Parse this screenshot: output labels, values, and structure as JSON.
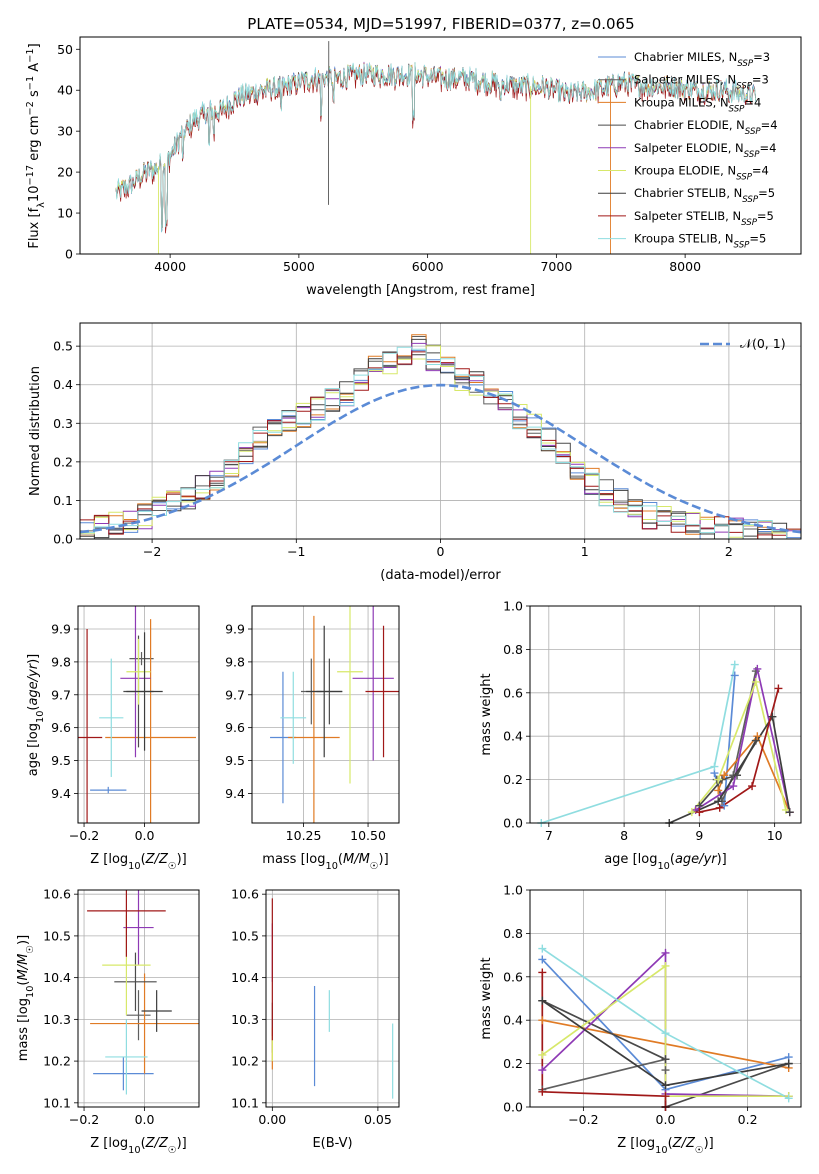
{
  "title": "PLATE=0534, MJD=51997, FIBERID=0377, z=0.065",
  "colors": {
    "chabrier_miles": "#5b8bd6",
    "salpeter_miles": "#5f5f5f",
    "kroupa_miles": "#e07b25",
    "chabrier_elodie": "#4a4a4a",
    "salpeter_elodie": "#8e3ab5",
    "kroupa_elodie": "#d7e86a",
    "chabrier_stelib": "#3d3d3d",
    "salpeter_stelib": "#a01818",
    "kroupa_stelib": "#8fdde0",
    "normal": "#5b8bd6",
    "grid": "#b0b0b0"
  },
  "chart_data": [
    {
      "type": "line",
      "xlabel": "wavelength [Angstrom, rest frame]",
      "ylabel": "Flux [f_λ10⁻¹⁷ erg cm⁻² s⁻¹ A⁻¹]",
      "xlim": [
        3300,
        8900
      ],
      "ylim": [
        0,
        53
      ],
      "xticks": [
        "4000",
        "5000",
        "6000",
        "7000",
        "8000"
      ],
      "yticks": [
        "0",
        "10",
        "20",
        "30",
        "40",
        "50"
      ],
      "legend": {
        "placement": "top-right",
        "entries": [
          "Chabrier MILES, N_SSP=3",
          "Salpeter MILES, N_SSP=3",
          "Kroupa MILES, N_SSP=4",
          "Chabrier ELODIE, N_SSP=4",
          "Salpeter ELODIE, N_SSP=4",
          "Kroupa ELODIE, N_SSP=4",
          "Chabrier STELIB, N_SSP=5",
          "Salpeter STELIB, N_SSP=5",
          "Kroupa STELIB, N_SSP=5"
        ]
      },
      "continuum": [
        [
          3580,
          15
        ],
        [
          3700,
          17
        ],
        [
          3800,
          20
        ],
        [
          3900,
          21
        ],
        [
          4000,
          24
        ],
        [
          4100,
          30
        ],
        [
          4200,
          33
        ],
        [
          4300,
          35
        ],
        [
          4400,
          35
        ],
        [
          4500,
          38
        ],
        [
          4700,
          40
        ],
        [
          4900,
          41
        ],
        [
          5100,
          43
        ],
        [
          5300,
          43
        ],
        [
          5500,
          44
        ],
        [
          5700,
          44
        ],
        [
          5900,
          44
        ],
        [
          6100,
          43
        ],
        [
          6300,
          43
        ],
        [
          6500,
          42
        ],
        [
          6700,
          41
        ],
        [
          6900,
          41
        ],
        [
          7100,
          39
        ],
        [
          7300,
          40
        ],
        [
          7500,
          42
        ],
        [
          7700,
          41
        ],
        [
          7900,
          41
        ],
        [
          8100,
          40
        ],
        [
          8300,
          40
        ],
        [
          8500,
          39
        ]
      ],
      "absorption_dips": [
        [
          3935,
          5
        ],
        [
          3970,
          6
        ],
        [
          4101,
          22
        ],
        [
          4304,
          25
        ],
        [
          4340,
          28
        ],
        [
          4861,
          34
        ],
        [
          5175,
          33
        ],
        [
          5270,
          36
        ],
        [
          5890,
          32
        ],
        [
          6563,
          36
        ]
      ],
      "spikes": [
        {
          "x": 3910,
          "y": 0
        },
        {
          "x": 5230,
          "y": 12
        },
        {
          "x": 5232,
          "y": 52
        },
        {
          "x": 6800,
          "y": 0
        },
        {
          "x": 7420,
          "y": 0
        }
      ]
    },
    {
      "type": "histogram",
      "xlabel": "(data-model)/error",
      "ylabel": "Normed distribution",
      "xlim": [
        -2.5,
        2.5
      ],
      "ylim": [
        0,
        0.56
      ],
      "xticks": [
        "−2",
        "−1",
        "0",
        "1",
        "2"
      ],
      "yticks": [
        "0.0",
        "0.1",
        "0.2",
        "0.3",
        "0.4",
        "0.5"
      ],
      "legend": {
        "placement": "top-right",
        "entries": [
          "𝒩(0, 1)"
        ]
      },
      "bin_width": 0.1,
      "histogram": [
        0.02,
        0.03,
        0.04,
        0.05,
        0.06,
        0.08,
        0.09,
        0.11,
        0.13,
        0.16,
        0.19,
        0.22,
        0.26,
        0.28,
        0.3,
        0.32,
        0.34,
        0.36,
        0.38,
        0.42,
        0.44,
        0.46,
        0.48,
        0.5,
        0.47,
        0.44,
        0.42,
        0.4,
        0.38,
        0.36,
        0.32,
        0.29,
        0.26,
        0.22,
        0.19,
        0.15,
        0.12,
        0.1,
        0.08,
        0.06,
        0.05,
        0.04,
        0.035,
        0.03,
        0.025,
        0.02,
        0.02,
        0.015,
        0.015,
        0.01
      ]
    },
    {
      "type": "errorbar",
      "xlabel": "Z [log10(Z/Z☉)]",
      "ylabel": "age  [log10(age/yr)]",
      "xlim": [
        -0.22,
        0.18
      ],
      "ylim": [
        9.31,
        9.97
      ],
      "xticks": [
        "−0.2",
        "0.0"
      ],
      "yticks": [
        "9.4",
        "9.5",
        "9.6",
        "9.7",
        "9.8",
        "9.9"
      ],
      "points": [
        {
          "series": "Chabrier MILES",
          "x": -0.12,
          "xerr": 0.06,
          "y": 9.41,
          "yerr": 0.01
        },
        {
          "series": "Salpeter MILES",
          "x": -0.01,
          "xerr": 0.04,
          "y": 9.81,
          "yerr": 0.02
        },
        {
          "series": "Kroupa MILES",
          "x": 0.02,
          "xerr": 0.15,
          "y": 9.57,
          "yerr": 0.36
        },
        {
          "series": "Chabrier ELODIE",
          "x": -0.02,
          "xerr": 0.05,
          "y": 9.71,
          "yerr": 0.17
        },
        {
          "series": "Salpeter ELODIE",
          "x": -0.03,
          "xerr": 0.05,
          "y": 9.75,
          "yerr": 0.24
        },
        {
          "series": "Kroupa ELODIE",
          "x": -0.02,
          "xerr": 0.04,
          "y": 9.77,
          "yerr": 0.1
        },
        {
          "series": "Chabrier STELIB",
          "x": 0.0,
          "xerr": 0.06,
          "y": 9.71,
          "yerr": 0.18
        },
        {
          "series": "Salpeter STELIB",
          "x": -0.19,
          "xerr": 0.05,
          "y": 9.57,
          "yerr": 0.33
        },
        {
          "series": "Kroupa STELIB",
          "x": -0.11,
          "xerr": 0.04,
          "y": 9.63,
          "yerr": 0.18
        }
      ]
    },
    {
      "type": "errorbar",
      "xlabel": "mass [log10(M/M☉)]",
      "ylabel": "",
      "xlim": [
        10.05,
        10.62
      ],
      "ylim": [
        9.31,
        9.97
      ],
      "xticks": [
        "10.25",
        "10.50"
      ],
      "yticks": [
        "9.4",
        "9.5",
        "9.6",
        "9.7",
        "9.8",
        "9.9"
      ],
      "points": [
        {
          "series": "Chabrier MILES",
          "x": 10.17,
          "xerr": 0.05,
          "y": 9.57,
          "yerr": 0.2
        },
        {
          "series": "Salpeter MILES",
          "x": 10.28,
          "xerr": 0.04,
          "y": 9.71,
          "yerr": 0.1
        },
        {
          "series": "Kroupa MILES",
          "x": 10.29,
          "xerr": 0.1,
          "y": 9.57,
          "yerr": 0.37
        },
        {
          "series": "Chabrier ELODIE",
          "x": 10.35,
          "xerr": 0.05,
          "y": 9.71,
          "yerr": 0.1
        },
        {
          "series": "Salpeter ELODIE",
          "x": 10.52,
          "xerr": 0.08,
          "y": 9.75,
          "yerr": 0.25
        },
        {
          "series": "Kroupa ELODIE",
          "x": 10.43,
          "xerr": 0.05,
          "y": 9.77,
          "yerr": 0.34
        },
        {
          "series": "Chabrier STELIB",
          "x": 10.33,
          "xerr": 0.07,
          "y": 9.71,
          "yerr": 0.2
        },
        {
          "series": "Salpeter STELIB",
          "x": 10.56,
          "xerr": 0.07,
          "y": 9.71,
          "yerr": 0.2
        },
        {
          "series": "Kroupa STELIB",
          "x": 10.21,
          "xerr": 0.05,
          "y": 9.63,
          "yerr": 0.14
        }
      ]
    },
    {
      "type": "line",
      "xlabel": "age  [log10(age/yr)]",
      "ylabel": "mass weight",
      "xlim": [
        6.75,
        10.35
      ],
      "ylim": [
        0,
        1
      ],
      "xticks": [
        "7",
        "8",
        "9",
        "10"
      ],
      "yticks": [
        "0.0",
        "0.2",
        "0.4",
        "0.6",
        "0.8",
        "1.0"
      ],
      "series": [
        {
          "color": "chabrier_miles",
          "points": [
            [
              9.2,
              0.23
            ],
            [
              9.33,
              0.08
            ],
            [
              9.47,
              0.68
            ]
          ]
        },
        {
          "color": "salpeter_miles",
          "points": [
            [
              9.23,
              0.2
            ],
            [
              9.3,
              0.1
            ],
            [
              9.45,
              0.22
            ],
            [
              9.75,
              0.7
            ]
          ]
        },
        {
          "color": "kroupa_miles",
          "points": [
            [
              9.25,
              0.15
            ],
            [
              9.33,
              0.22
            ],
            [
              9.77,
              0.4
            ],
            [
              10.2,
              0.05
            ]
          ]
        },
        {
          "color": "chabrier_elodie",
          "points": [
            [
              9.0,
              0.08
            ],
            [
              9.3,
              0.2
            ],
            [
              9.5,
              0.22
            ],
            [
              9.75,
              0.38
            ]
          ]
        },
        {
          "color": "salpeter_elodie",
          "points": [
            [
              8.95,
              0.06
            ],
            [
              9.45,
              0.17
            ],
            [
              9.77,
              0.71
            ],
            [
              10.2,
              0.05
            ]
          ]
        },
        {
          "color": "kroupa_elodie",
          "points": [
            [
              8.9,
              0.05
            ],
            [
              9.25,
              0.2
            ],
            [
              9.75,
              0.65
            ],
            [
              10.15,
              0.06
            ]
          ]
        },
        {
          "color": "chabrier_stelib",
          "points": [
            [
              8.6,
              0.0
            ],
            [
              9.25,
              0.1
            ],
            [
              9.97,
              0.49
            ],
            [
              10.2,
              0.05
            ]
          ]
        },
        {
          "color": "salpeter_stelib",
          "points": [
            [
              9.0,
              0.05
            ],
            [
              9.27,
              0.07
            ],
            [
              9.7,
              0.17
            ],
            [
              10.05,
              0.62
            ]
          ]
        },
        {
          "color": "kroupa_stelib",
          "points": [
            [
              6.9,
              0.0
            ],
            [
              9.2,
              0.26
            ],
            [
              9.47,
              0.73
            ]
          ]
        }
      ]
    },
    {
      "type": "errorbar",
      "xlabel": "Z [log10(Z/Z☉)]",
      "ylabel": "mass [log10(M/M☉)]",
      "xlim": [
        -0.22,
        0.18
      ],
      "ylim": [
        10.09,
        10.61
      ],
      "xticks": [
        "−0.2",
        "0.0"
      ],
      "yticks": [
        "10.1",
        "10.2",
        "10.3",
        "10.4",
        "10.5",
        "10.6"
      ],
      "points": [
        {
          "series": "Chabrier MILES",
          "x": -0.07,
          "xerr": 0.1,
          "y": 10.17,
          "yerr": 0.04
        },
        {
          "series": "Salpeter MILES",
          "x": -0.02,
          "xerr": 0.04,
          "y": 10.31,
          "yerr": 0.06
        },
        {
          "series": "Kroupa MILES",
          "x": 0.0,
          "xerr": 0.18,
          "y": 10.29,
          "yerr": 0.12
        },
        {
          "series": "Chabrier ELODIE",
          "x": -0.03,
          "xerr": 0.07,
          "y": 10.39,
          "yerr": 0.07
        },
        {
          "series": "Salpeter ELODIE",
          "x": -0.02,
          "xerr": 0.05,
          "y": 10.52,
          "yerr": 0.09
        },
        {
          "series": "Kroupa ELODIE",
          "x": -0.06,
          "xerr": 0.08,
          "y": 10.43,
          "yerr": 0.12
        },
        {
          "series": "Chabrier STELIB",
          "x": 0.04,
          "xerr": 0.05,
          "y": 10.32,
          "yerr": 0.05
        },
        {
          "series": "Salpeter STELIB",
          "x": -0.06,
          "xerr": 0.13,
          "y": 10.56,
          "yerr": 0.11
        },
        {
          "series": "Kroupa STELIB",
          "x": -0.06,
          "xerr": 0.07,
          "y": 10.21,
          "yerr": 0.09
        }
      ]
    },
    {
      "type": "errorbar",
      "xlabel": "E(B-V)",
      "ylabel": "",
      "xlim": [
        -0.003,
        0.06
      ],
      "ylim": [
        10.09,
        10.61
      ],
      "xticks": [
        "0.00",
        "0.05"
      ],
      "yticks": [
        "10.1",
        "10.2",
        "10.3",
        "10.4",
        "10.5",
        "10.6"
      ],
      "points": [
        {
          "series": "Chabrier MILES",
          "x": 0.02,
          "xerr": 0,
          "y": 10.26,
          "yerr": 0.12
        },
        {
          "series": "Salpeter MILES",
          "x": 0.0,
          "xerr": 0,
          "y": 10.28,
          "yerr": 0.06
        },
        {
          "series": "Kroupa MILES",
          "x": 0.0,
          "xerr": 0,
          "y": 10.23,
          "yerr": 0.05
        },
        {
          "series": "Salpeter ELODIE",
          "x": 0.0,
          "xerr": 0,
          "y": 10.46,
          "yerr": 0.07
        },
        {
          "series": "Kroupa ELODIE",
          "x": 0.0,
          "xerr": 0,
          "y": 10.23,
          "yerr": 0.03
        },
        {
          "series": "Salpeter STELIB",
          "x": 0.0,
          "xerr": 0,
          "y": 10.42,
          "yerr": 0.17
        },
        {
          "series": "Kroupa STELIB",
          "x": 0.027,
          "xerr": 0,
          "y": 10.32,
          "yerr": 0.05
        },
        {
          "series": "Kroupa STELIB",
          "x": 0.057,
          "xerr": 0,
          "y": 10.2,
          "yerr": 0.09
        }
      ]
    },
    {
      "type": "line",
      "xlabel": "Z [log10(Z/Z☉)]",
      "ylabel": "mass weight",
      "xlim": [
        -0.33,
        0.33
      ],
      "ylim": [
        0,
        1
      ],
      "xticks": [
        "−0.2",
        "0.0",
        "0.2"
      ],
      "yticks": [
        "0.0",
        "0.2",
        "0.4",
        "0.6",
        "0.8",
        "1.0"
      ],
      "series": [
        {
          "color": "chabrier_miles",
          "points": [
            [
              -0.3,
              0.68
            ],
            [
              0.0,
              0.08
            ],
            [
              0.3,
              0.23
            ]
          ]
        },
        {
          "color": "salpeter_miles",
          "points": [
            [
              -0.3,
              0.08
            ],
            [
              0.0,
              0.22
            ],
            [
              0.0,
              0.17
            ],
            [
              0.0,
              0.0
            ]
          ]
        },
        {
          "color": "kroupa_miles",
          "points": [
            [
              -0.3,
              0.4
            ],
            [
              0.3,
              0.18
            ]
          ]
        },
        {
          "color": "chabrier_elodie",
          "points": [
            [
              -0.3,
              0.49
            ],
            [
              0.0,
              0.22
            ],
            [
              0.0,
              0.0
            ],
            [
              0.3,
              0.2
            ]
          ]
        },
        {
          "color": "salpeter_elodie",
          "points": [
            [
              -0.3,
              0.17
            ],
            [
              0.0,
              0.71
            ],
            [
              0.0,
              0.06
            ],
            [
              0.3,
              0.05
            ]
          ]
        },
        {
          "color": "kroupa_elodie",
          "points": [
            [
              -0.3,
              0.24
            ],
            [
              0.0,
              0.65
            ],
            [
              0.0,
              0.05
            ],
            [
              0.3,
              0.05
            ]
          ]
        },
        {
          "color": "chabrier_stelib",
          "points": [
            [
              -0.3,
              0.49
            ],
            [
              0.0,
              0.1
            ],
            [
              0.3,
              0.2
            ]
          ]
        },
        {
          "color": "salpeter_stelib",
          "points": [
            [
              -0.3,
              0.62
            ],
            [
              -0.3,
              0.07
            ],
            [
              0.0,
              0.05
            ],
            [
              0.0,
              0.0
            ]
          ]
        },
        {
          "color": "kroupa_stelib",
          "points": [
            [
              -0.3,
              0.73
            ],
            [
              0.0,
              0.34
            ],
            [
              0.3,
              0.04
            ]
          ]
        }
      ]
    }
  ]
}
